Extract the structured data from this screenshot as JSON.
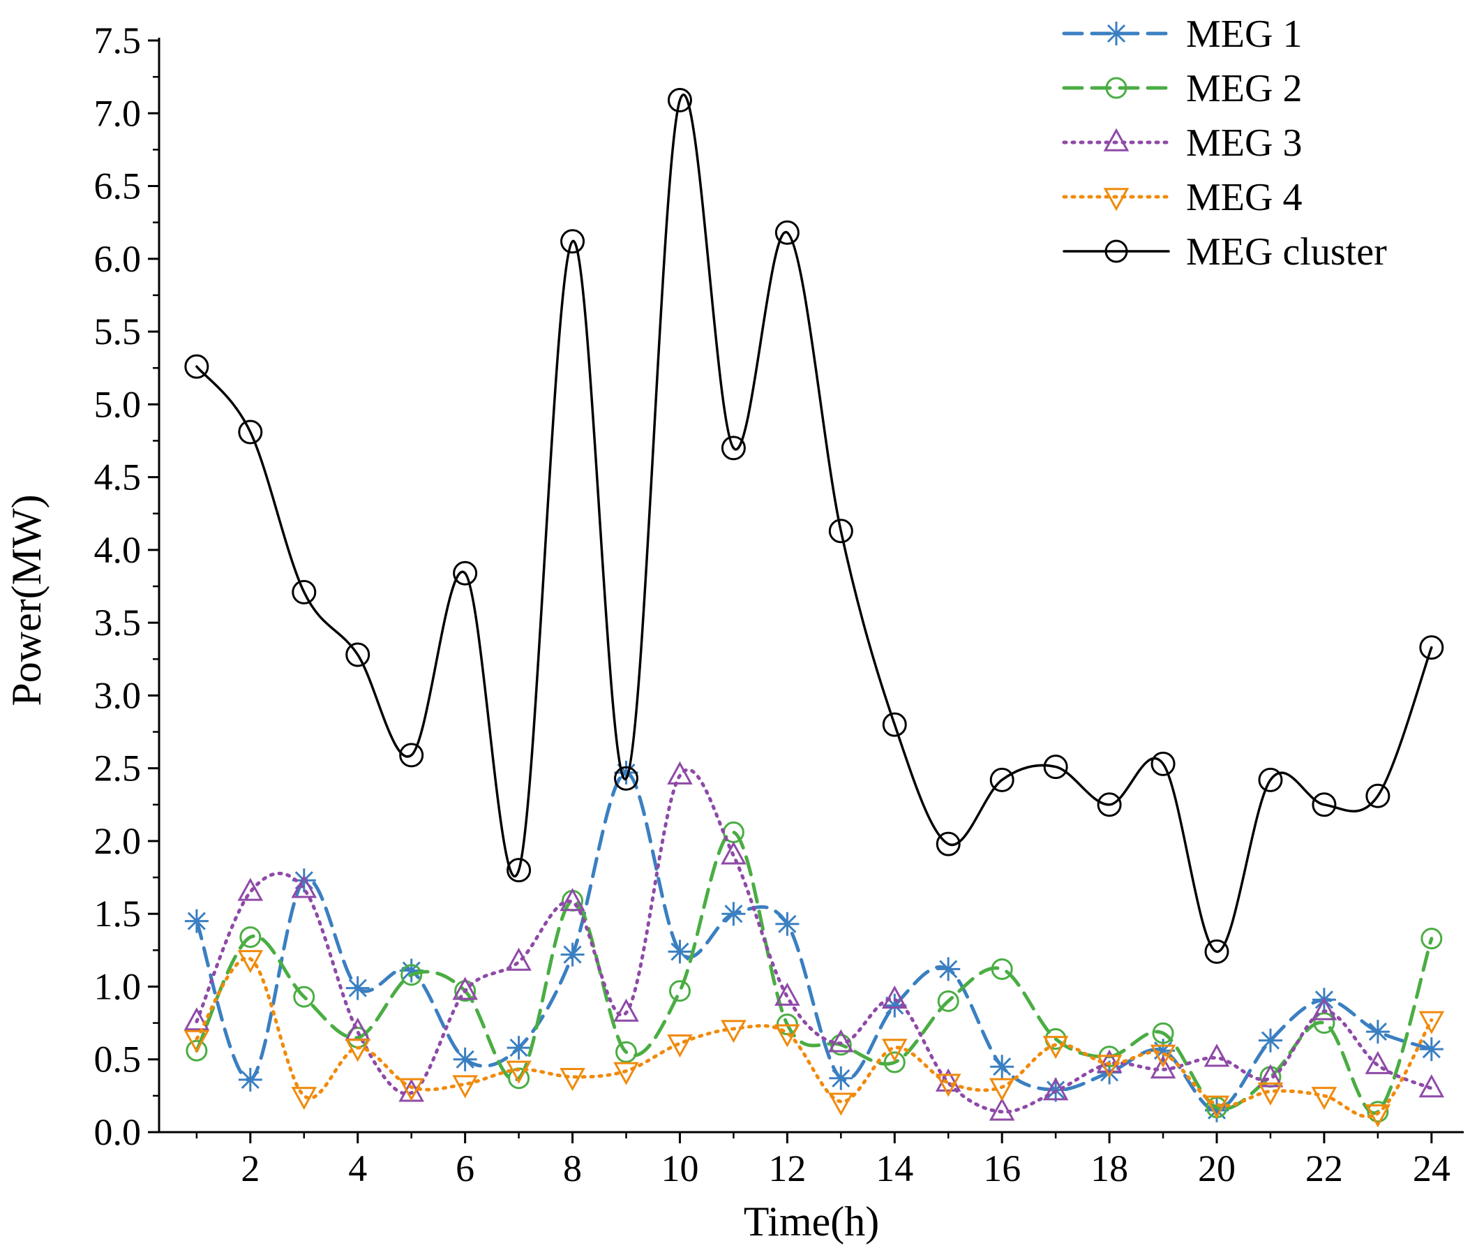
{
  "chart_data": {
    "type": "line",
    "title": "",
    "xlabel": "Time(h)",
    "ylabel": "Power(MW)",
    "xlim": [
      0.3,
      24.6
    ],
    "ylim": [
      0,
      7.5
    ],
    "x_ticks": [
      2,
      4,
      6,
      8,
      10,
      12,
      14,
      16,
      18,
      20,
      22,
      24
    ],
    "x_tick_labels": [
      "2",
      "4",
      "6",
      "8",
      "10",
      "12",
      "14",
      "16",
      "18",
      "20",
      "22",
      "24"
    ],
    "y_ticks": [
      0,
      0.5,
      1,
      1.5,
      2,
      2.5,
      3,
      3.5,
      4,
      4.5,
      5,
      5.5,
      6,
      6.5,
      7,
      7.5
    ],
    "y_tick_labels": [
      "0.0",
      "0.5",
      "1.0",
      "1.5",
      "2.0",
      "2.5",
      "3.0",
      "3.5",
      "4.0",
      "4.5",
      "5.0",
      "5.5",
      "6.0",
      "6.5",
      "7.0",
      "7.5"
    ],
    "legend_position": "top-right",
    "x": [
      1,
      2,
      3,
      4,
      5,
      6,
      7,
      8,
      9,
      10,
      11,
      12,
      13,
      14,
      15,
      16,
      17,
      18,
      19,
      20,
      21,
      22,
      23,
      24
    ],
    "series": [
      {
        "name": "MEG 1",
        "color": "#3a7fc1",
        "line_style": "dashed",
        "marker": "asterisk",
        "values": [
          1.45,
          0.36,
          1.73,
          0.99,
          1.11,
          0.5,
          0.58,
          1.22,
          2.47,
          1.24,
          1.5,
          1.43,
          0.37,
          0.87,
          1.12,
          0.45,
          0.29,
          0.41,
          0.56,
          0.15,
          0.63,
          0.91,
          0.69,
          0.57
        ]
      },
      {
        "name": "MEG 2",
        "color": "#4aad43",
        "line_style": "dashed",
        "marker": "circle",
        "values": [
          0.56,
          1.34,
          0.93,
          0.65,
          1.08,
          0.97,
          0.37,
          1.59,
          0.55,
          0.97,
          2.06,
          0.74,
          0.6,
          0.48,
          0.9,
          1.12,
          0.64,
          0.52,
          0.68,
          0.17,
          0.38,
          0.75,
          0.14,
          1.33
        ]
      },
      {
        "name": "MEG 3",
        "color": "#8e4aa7",
        "line_style": "dotted",
        "marker": "triangle-up",
        "values": [
          0.76,
          1.65,
          1.67,
          0.69,
          0.27,
          0.97,
          1.17,
          1.58,
          0.82,
          2.45,
          1.9,
          0.93,
          0.61,
          0.91,
          0.34,
          0.14,
          0.28,
          0.47,
          0.43,
          0.51,
          0.37,
          0.83,
          0.46,
          0.3
        ]
      },
      {
        "name": "MEG 4",
        "color": "#f08a0c",
        "line_style": "dotted",
        "marker": "triangle-down",
        "values": [
          0.64,
          1.19,
          0.25,
          0.58,
          0.31,
          0.33,
          0.43,
          0.38,
          0.42,
          0.61,
          0.71,
          0.68,
          0.21,
          0.58,
          0.34,
          0.31,
          0.6,
          0.47,
          0.54,
          0.19,
          0.28,
          0.25,
          0.13,
          0.77
        ]
      },
      {
        "name": "MEG cluster",
        "color": "#000000",
        "line_style": "solid",
        "marker": "circle",
        "values": [
          5.26,
          4.81,
          3.71,
          3.28,
          2.59,
          3.84,
          1.8,
          6.12,
          2.43,
          7.09,
          4.7,
          6.18,
          4.13,
          2.8,
          1.98,
          2.42,
          2.51,
          2.25,
          2.53,
          1.24,
          2.42,
          2.25,
          2.31,
          3.33
        ]
      }
    ]
  }
}
